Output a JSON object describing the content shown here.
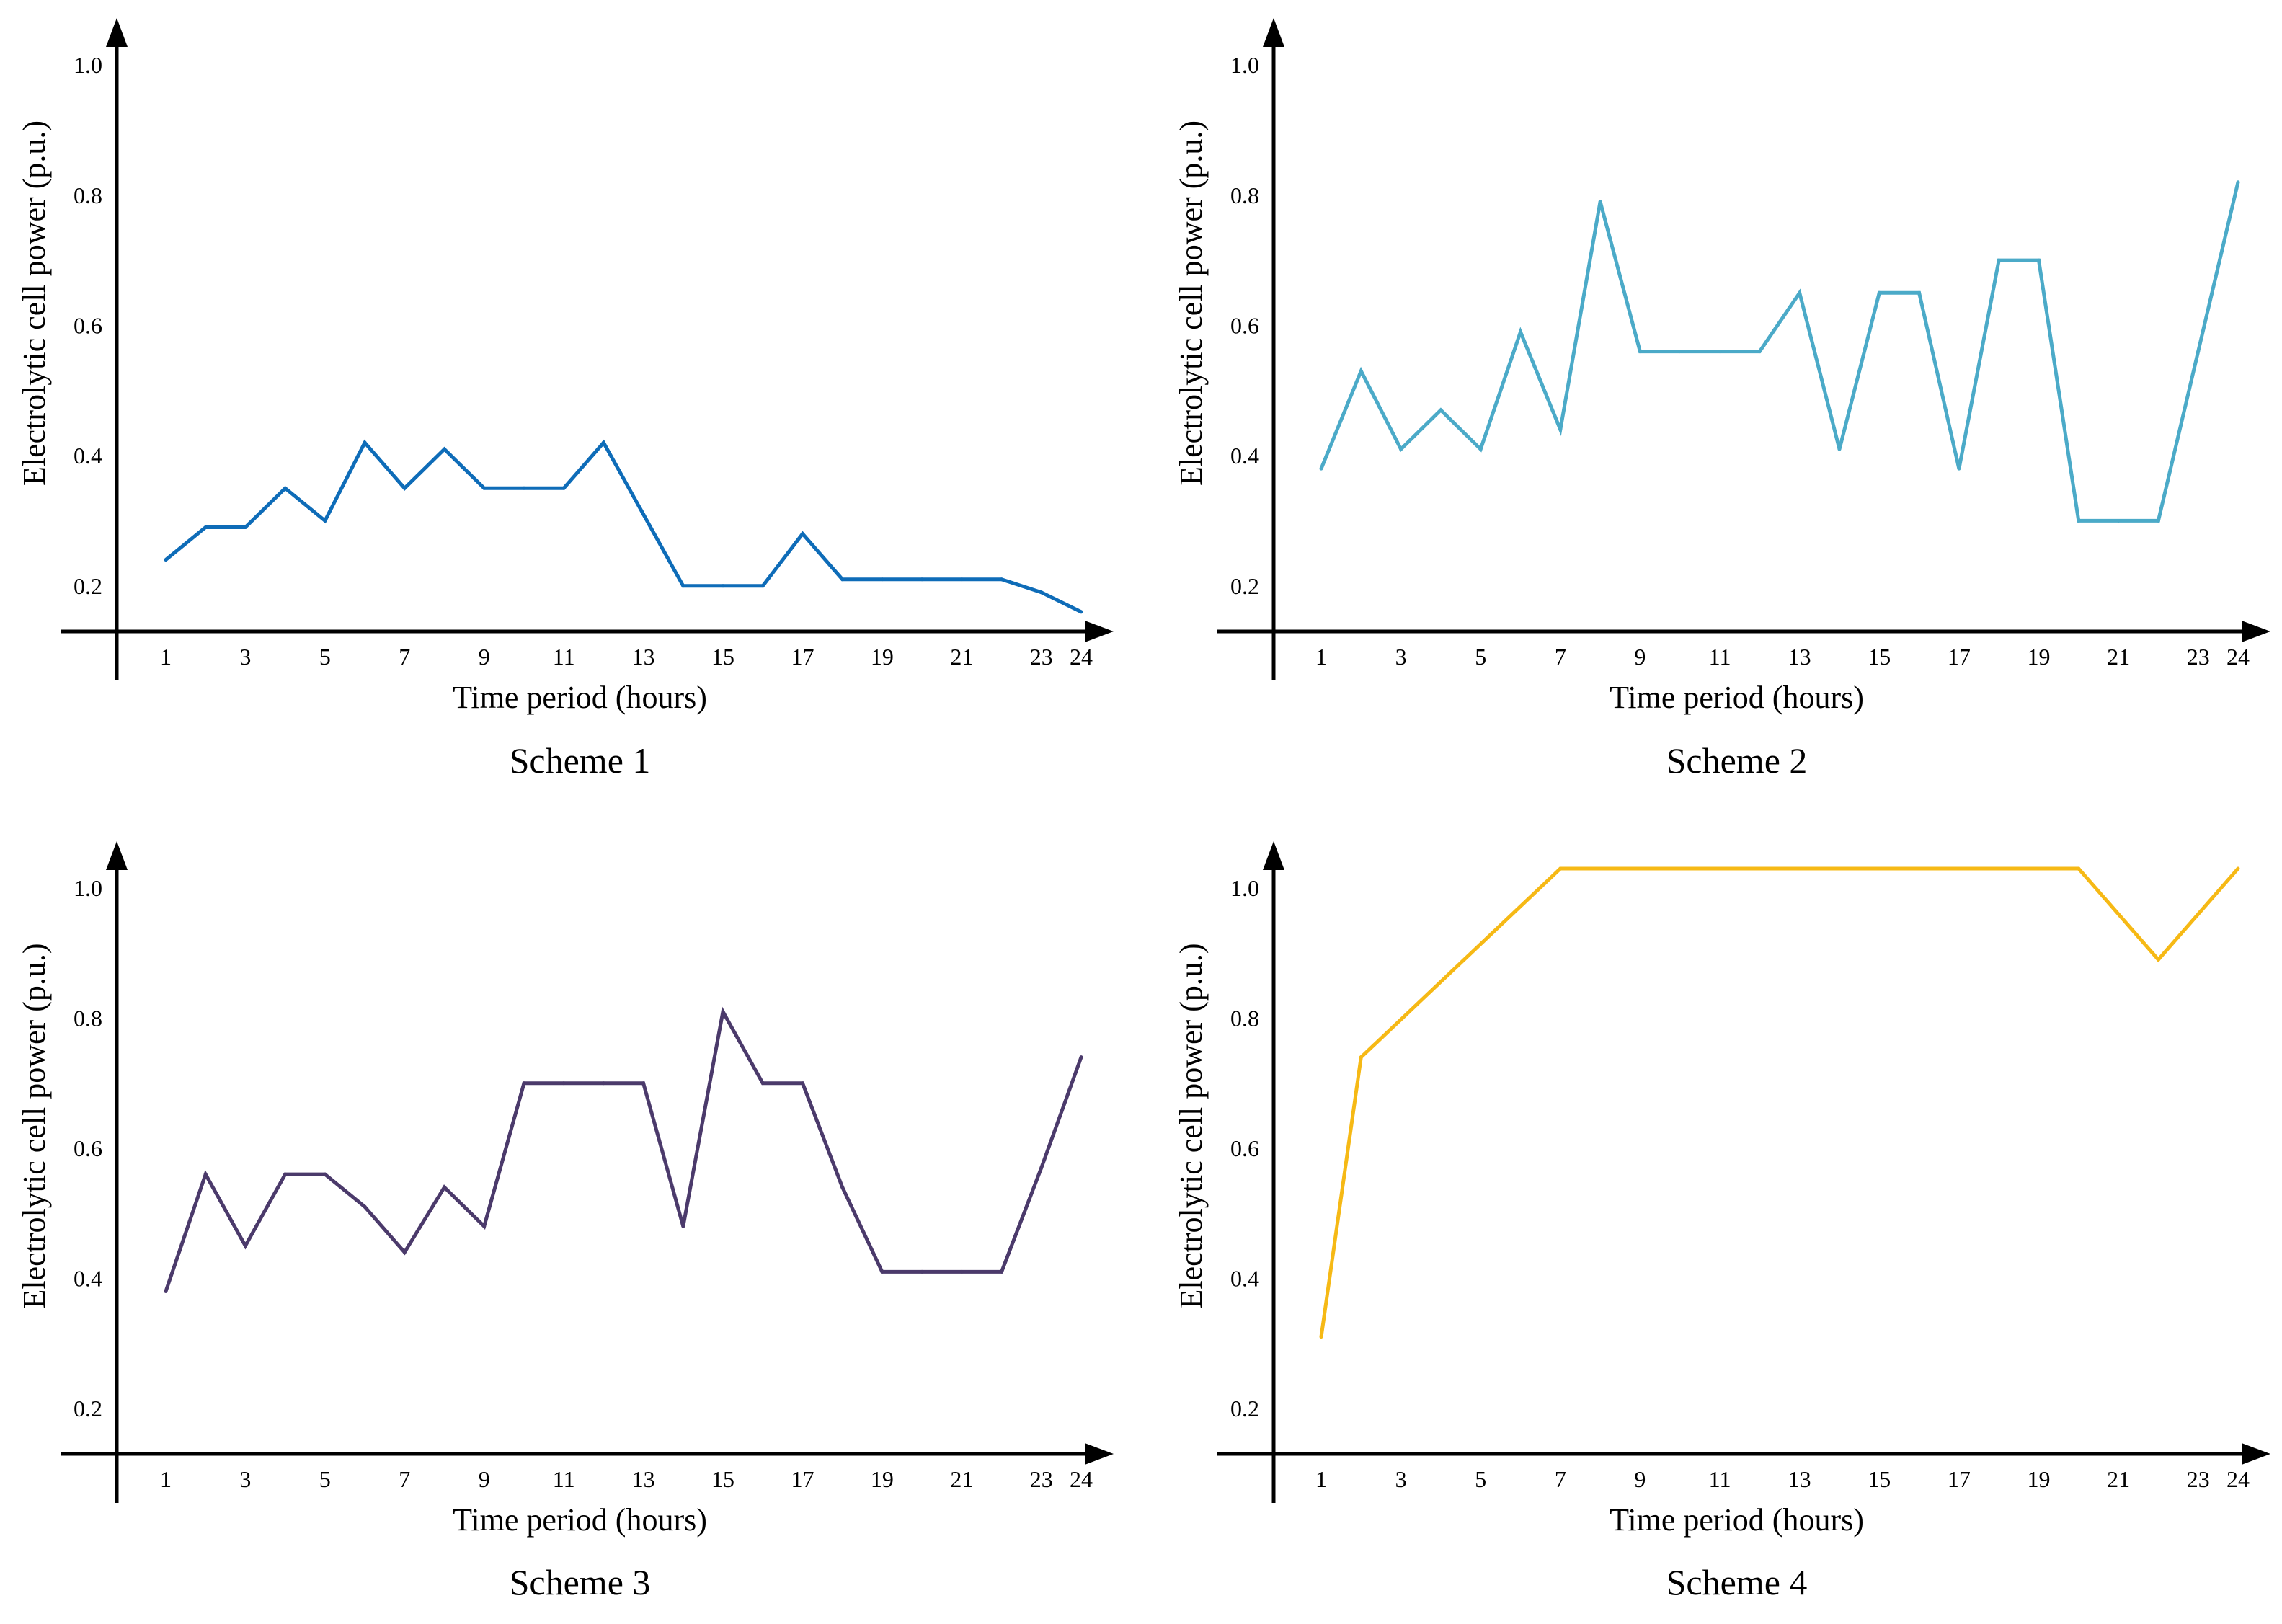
{
  "chart_data": [
    {
      "type": "line",
      "title": "Scheme 1",
      "xlabel": "Time period (hours)",
      "ylabel": "Electrolytic cell power (p.u.)",
      "x_tick_labels": [
        "1",
        "3",
        "5",
        "7",
        "9",
        "11",
        "13",
        "15",
        "17",
        "19",
        "21",
        "23",
        "24"
      ],
      "y_tick_labels": [
        "0.2",
        "0.4",
        "0.6",
        "0.8",
        "1.0"
      ],
      "ylim": [
        0.13,
        1.05
      ],
      "series": [
        {
          "name": "Scheme 1",
          "color": "#0E6CB8",
          "x": [
            1,
            2,
            3,
            4,
            5,
            6,
            7,
            8,
            9,
            10,
            11,
            12,
            13,
            14,
            15,
            16,
            17,
            18,
            19,
            20,
            21,
            22,
            23,
            24
          ],
          "values": [
            0.24,
            0.29,
            0.29,
            0.35,
            0.3,
            0.42,
            0.35,
            0.41,
            0.35,
            0.35,
            0.35,
            0.42,
            0.31,
            0.2,
            0.2,
            0.2,
            0.28,
            0.21,
            0.21,
            0.21,
            0.21,
            0.21,
            0.19,
            0.16
          ]
        }
      ]
    },
    {
      "type": "line",
      "title": "Scheme 2",
      "xlabel": "Time period (hours)",
      "ylabel": "Electrolytic cell power (p.u.)",
      "x_tick_labels": [
        "1",
        "3",
        "5",
        "7",
        "9",
        "11",
        "13",
        "15",
        "17",
        "19",
        "21",
        "23",
        "24"
      ],
      "y_tick_labels": [
        "0.2",
        "0.4",
        "0.6",
        "0.8",
        "1.0"
      ],
      "ylim": [
        0.13,
        1.05
      ],
      "series": [
        {
          "name": "Scheme 2",
          "color": "#4BAAC8",
          "x": [
            1,
            2,
            3,
            4,
            5,
            6,
            7,
            8,
            9,
            10,
            11,
            12,
            13,
            14,
            15,
            16,
            17,
            18,
            19,
            20,
            21,
            22,
            23,
            24
          ],
          "values": [
            0.38,
            0.53,
            0.41,
            0.47,
            0.41,
            0.59,
            0.44,
            0.79,
            0.56,
            0.56,
            0.56,
            0.56,
            0.65,
            0.41,
            0.65,
            0.65,
            0.38,
            0.7,
            0.7,
            0.3,
            0.3,
            0.3,
            0.56,
            0.82
          ]
        }
      ]
    },
    {
      "type": "line",
      "title": "Scheme 3",
      "xlabel": "Time period (hours)",
      "ylabel": "Electrolytic cell power (p.u.)",
      "x_tick_labels": [
        "1",
        "3",
        "5",
        "7",
        "9",
        "11",
        "13",
        "15",
        "17",
        "19",
        "21",
        "23",
        "24"
      ],
      "y_tick_labels": [
        "0.2",
        "0.4",
        "0.6",
        "0.8",
        "1.0"
      ],
      "ylim": [
        0.13,
        1.05
      ],
      "series": [
        {
          "name": "Scheme 3",
          "color": "#4B3A6B",
          "x": [
            1,
            2,
            3,
            4,
            5,
            6,
            7,
            8,
            9,
            10,
            11,
            12,
            13,
            14,
            15,
            16,
            17,
            18,
            19,
            20,
            21,
            22,
            23,
            24
          ],
          "values": [
            0.38,
            0.56,
            0.45,
            0.56,
            0.56,
            0.51,
            0.44,
            0.54,
            0.48,
            0.7,
            0.7,
            0.7,
            0.7,
            0.48,
            0.81,
            0.7,
            0.7,
            0.54,
            0.41,
            0.41,
            0.41,
            0.41,
            0.57,
            0.74
          ]
        }
      ]
    },
    {
      "type": "line",
      "title": "Scheme 4",
      "xlabel": "Time period (hours)",
      "ylabel": "Electrolytic cell power (p.u.)",
      "x_tick_labels": [
        "1",
        "3",
        "5",
        "7",
        "9",
        "11",
        "13",
        "15",
        "17",
        "19",
        "21",
        "23",
        "24"
      ],
      "y_tick_labels": [
        "0.2",
        "0.4",
        "0.6",
        "0.8",
        "1.0"
      ],
      "ylim": [
        0.13,
        1.05
      ],
      "series": [
        {
          "name": "Scheme 4",
          "color": "#F6B915",
          "x": [
            1,
            2,
            7,
            20,
            22,
            24
          ],
          "values": [
            0.31,
            0.74,
            1.03,
            1.03,
            0.89,
            1.03
          ]
        }
      ]
    }
  ]
}
